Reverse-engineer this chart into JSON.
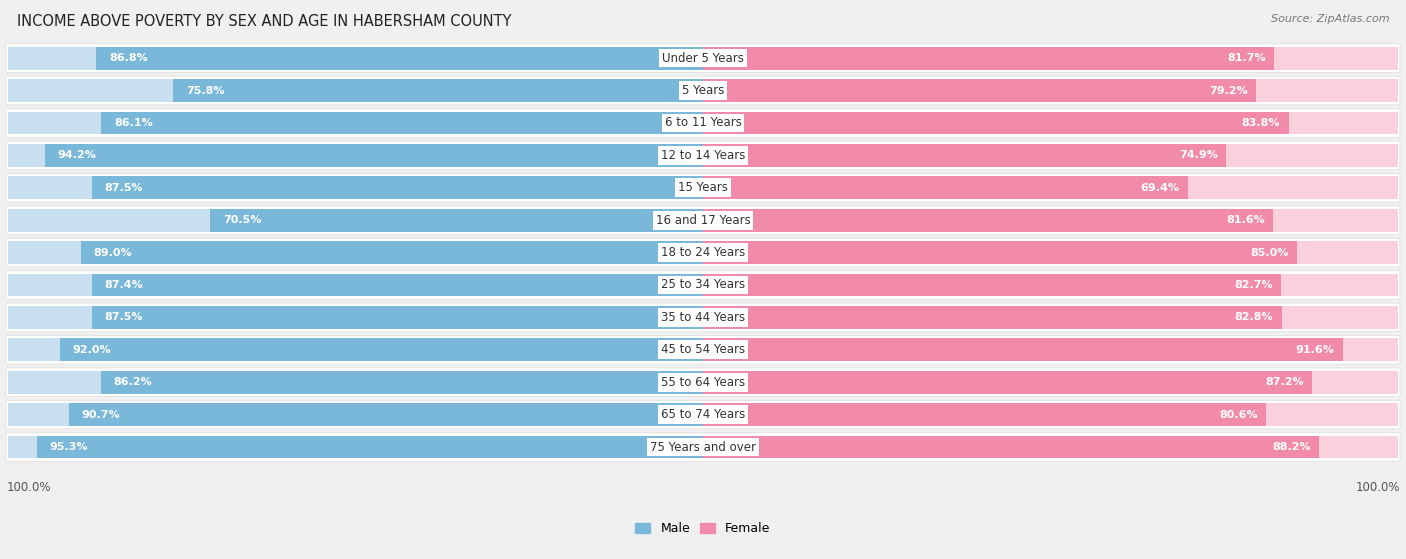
{
  "title": "INCOME ABOVE POVERTY BY SEX AND AGE IN HABERSHAM COUNTY",
  "source": "Source: ZipAtlas.com",
  "categories": [
    "Under 5 Years",
    "5 Years",
    "6 to 11 Years",
    "12 to 14 Years",
    "15 Years",
    "16 and 17 Years",
    "18 to 24 Years",
    "25 to 34 Years",
    "35 to 44 Years",
    "45 to 54 Years",
    "55 to 64 Years",
    "65 to 74 Years",
    "75 Years and over"
  ],
  "male_values": [
    86.8,
    75.8,
    86.1,
    94.2,
    87.5,
    70.5,
    89.0,
    87.4,
    87.5,
    92.0,
    86.2,
    90.7,
    95.3
  ],
  "female_values": [
    81.7,
    79.2,
    83.8,
    74.9,
    69.4,
    81.6,
    85.0,
    82.7,
    82.8,
    91.6,
    87.2,
    80.6,
    88.2
  ],
  "male_color": "#7ab8d9",
  "female_color": "#f28baa",
  "male_light_color": "#c8dff0",
  "female_light_color": "#f9d0dc",
  "bg_color": "#f0f0f0",
  "row_bg_color": "#ffffff",
  "row_border_color": "#dddddd",
  "title_fontsize": 10.5,
  "label_fontsize": 8.5,
  "value_fontsize": 8.0,
  "axis_max": 100.0
}
